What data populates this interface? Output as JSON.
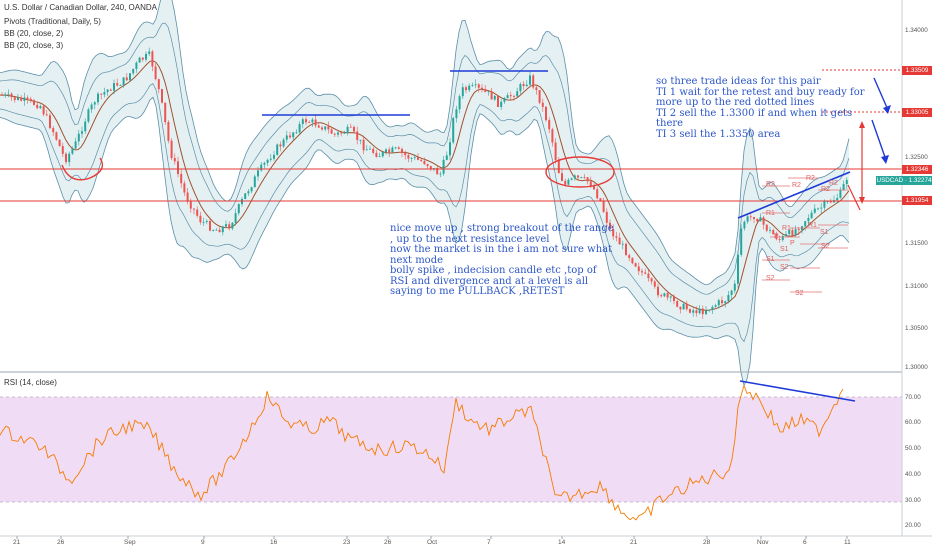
{
  "header": {
    "symbol_line": "U.S. Dollar / Canadian Dollar, 240, OANDA",
    "indicator_pivots": "Pivots (Traditional, Daily, 5)",
    "indicator_bb1": "BB (20, close, 2)",
    "indicator_bb2": "BB (20, close, 3)",
    "rsi_label": "RSI (14, close)"
  },
  "annotations": {
    "trade_ideas": "so three trade ideas for this pair\nTI 1 wait for the retest and buy ready for\nmore up to the red dotted lines\nTI 2 sell the 1.3300 if and when it gets\nthere\nTI 3 sell the 1.3350 area",
    "analysis": "nice move up , strong breakout of the range\n, up to the next resistance level\nnow the market is in the i am not sure what\nnext mode\nbolly spike , indecision candle etc ,top of\nRSI and divergence and at a level is all\nsaying to me PULLBACK ,RETEST"
  },
  "price_axis": {
    "labels": [
      "1.34000",
      "1.32500",
      "1.31500",
      "1.31000",
      "1.30500",
      "1.30000"
    ],
    "tags": [
      {
        "text": "1.33509",
        "color": "#e53935"
      },
      {
        "text": "1.33005",
        "color": "#e53935"
      },
      {
        "text": "1.32346",
        "color": "#e53935"
      },
      {
        "text": "USDCAD · 1.32274",
        "color": "#26a69a"
      },
      {
        "text": "1.31954",
        "color": "#e53935"
      }
    ]
  },
  "rsi_axis": {
    "labels": [
      "70.00",
      "60.00",
      "50.00",
      "40.00",
      "30.00",
      "20.00"
    ]
  },
  "time_axis": {
    "labels": [
      "21",
      "26",
      "Sep",
      "9",
      "16",
      "23",
      "26",
      "Oct",
      "7",
      "14",
      "21",
      "28",
      "Nov",
      "6",
      "11"
    ]
  },
  "pivot_labels": [
    "R2",
    "R2",
    "R1",
    "P",
    "S1",
    "S2",
    "R2",
    "R1",
    "P",
    "S1",
    "S2",
    "R2",
    "R1",
    "S1",
    "S2",
    "R2",
    "S2"
  ],
  "colors": {
    "bb_fill": "#cfe3ea",
    "bb_line": "#5b8fa8",
    "basis": "#a0522d",
    "candle_up": "#26a69a",
    "candle_down": "#ef5350",
    "rsi_band": "#f1dcf5",
    "rsi_line": "#f57c00",
    "drawing_red": "#e53935",
    "drawing_blue": "#1e3bd8",
    "text_blue": "#2c56c8"
  },
  "icons": [
    "arrow-down-icon"
  ]
}
